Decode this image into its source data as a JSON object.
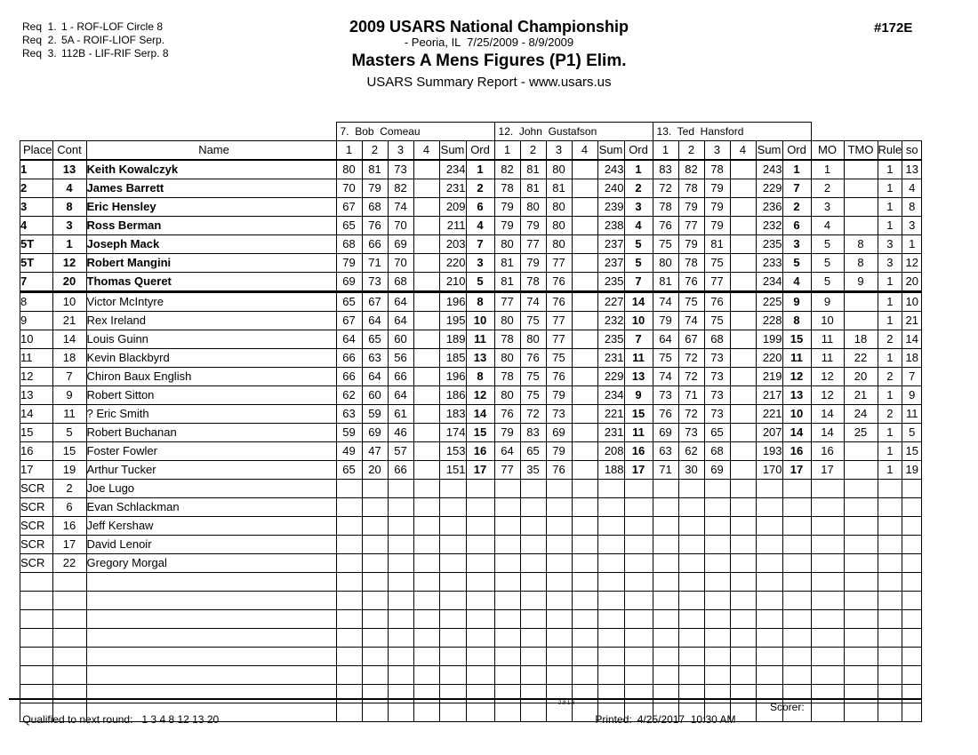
{
  "page": {
    "requirements": [
      {
        "label": "Req  1.",
        "value": "1 - ROF-LOF Circle 8"
      },
      {
        "label": "Req  2.",
        "value": "5A - ROIF-LIOF Serp."
      },
      {
        "label": "Req  3.",
        "value": "112B - LIF-RIF Serp. 8"
      }
    ],
    "title": "2009 USARS National Championship",
    "subtitle": "- Peoria, IL  7/25/2009 - 8/9/2009",
    "event_name": "Masters A Mens Figures (P1) Elim.",
    "report_line": "USARS Summary Report - www.usars.us",
    "event_number": "#172E"
  },
  "table": {
    "judges": [
      "7.  Bob  Comeau",
      "12.  John  Gustafson",
      "13.  Ted  Hansford"
    ],
    "left_columns": [
      "Place",
      "Cont",
      "Name"
    ],
    "judge_subcolumns": [
      "1",
      "2",
      "3",
      "4",
      "Sum",
      "Ord"
    ],
    "right_columns": [
      "MO",
      "TMO",
      "Rule",
      "so"
    ],
    "empty_row_count": 8,
    "rows": [
      {
        "place": "1",
        "cont": "13",
        "name": "Keith Kowalczyk",
        "bold": true,
        "cut": false,
        "j1": [
          "80",
          "81",
          "73",
          "",
          "234",
          "1"
        ],
        "j2": [
          "82",
          "81",
          "80",
          "",
          "243",
          "1"
        ],
        "j3": [
          "83",
          "82",
          "78",
          "",
          "243",
          "1"
        ],
        "mo": "1",
        "tmo": "",
        "rule": "1",
        "so": "13"
      },
      {
        "place": "2",
        "cont": "4",
        "name": "James Barrett",
        "bold": true,
        "cut": false,
        "j1": [
          "70",
          "79",
          "82",
          "",
          "231",
          "2"
        ],
        "j2": [
          "78",
          "81",
          "81",
          "",
          "240",
          "2"
        ],
        "j3": [
          "72",
          "78",
          "79",
          "",
          "229",
          "7"
        ],
        "mo": "2",
        "tmo": "",
        "rule": "1",
        "so": "4"
      },
      {
        "place": "3",
        "cont": "8",
        "name": "Eric Hensley",
        "bold": true,
        "cut": false,
        "j1": [
          "67",
          "68",
          "74",
          "",
          "209",
          "6"
        ],
        "j2": [
          "79",
          "80",
          "80",
          "",
          "239",
          "3"
        ],
        "j3": [
          "78",
          "79",
          "79",
          "",
          "236",
          "2"
        ],
        "mo": "3",
        "tmo": "",
        "rule": "1",
        "so": "8"
      },
      {
        "place": "4",
        "cont": "3",
        "name": "Ross Berman",
        "bold": true,
        "cut": false,
        "j1": [
          "65",
          "76",
          "70",
          "",
          "211",
          "4"
        ],
        "j2": [
          "79",
          "79",
          "80",
          "",
          "238",
          "4"
        ],
        "j3": [
          "76",
          "77",
          "79",
          "",
          "232",
          "6"
        ],
        "mo": "4",
        "tmo": "",
        "rule": "1",
        "so": "3"
      },
      {
        "place": "5T",
        "cont": "1",
        "name": "Joseph Mack",
        "bold": true,
        "cut": false,
        "j1": [
          "68",
          "66",
          "69",
          "",
          "203",
          "7"
        ],
        "j2": [
          "80",
          "77",
          "80",
          "",
          "237",
          "5"
        ],
        "j3": [
          "75",
          "79",
          "81",
          "",
          "235",
          "3"
        ],
        "mo": "5",
        "tmo": "8",
        "rule": "3",
        "so": "1"
      },
      {
        "place": "5T",
        "cont": "12",
        "name": "Robert Mangini",
        "bold": true,
        "cut": false,
        "j1": [
          "79",
          "71",
          "70",
          "",
          "220",
          "3"
        ],
        "j2": [
          "81",
          "79",
          "77",
          "",
          "237",
          "5"
        ],
        "j3": [
          "80",
          "78",
          "75",
          "",
          "233",
          "5"
        ],
        "mo": "5",
        "tmo": "8",
        "rule": "3",
        "so": "12"
      },
      {
        "place": "7",
        "cont": "20",
        "name": "Thomas Queret",
        "bold": true,
        "cut": true,
        "j1": [
          "69",
          "73",
          "68",
          "",
          "210",
          "5"
        ],
        "j2": [
          "81",
          "78",
          "76",
          "",
          "235",
          "7"
        ],
        "j3": [
          "81",
          "76",
          "77",
          "",
          "234",
          "4"
        ],
        "mo": "5",
        "tmo": "9",
        "rule": "1",
        "so": "20"
      },
      {
        "place": "8",
        "cont": "10",
        "name": "Victor McIntyre",
        "bold": false,
        "cut": false,
        "j1": [
          "65",
          "67",
          "64",
          "",
          "196",
          "8"
        ],
        "j2": [
          "77",
          "74",
          "76",
          "",
          "227",
          "14"
        ],
        "j3": [
          "74",
          "75",
          "76",
          "",
          "225",
          "9"
        ],
        "mo": "9",
        "tmo": "",
        "rule": "1",
        "so": "10"
      },
      {
        "place": "9",
        "cont": "21",
        "name": "Rex Ireland",
        "bold": false,
        "cut": false,
        "j1": [
          "67",
          "64",
          "64",
          "",
          "195",
          "10"
        ],
        "j2": [
          "80",
          "75",
          "77",
          "",
          "232",
          "10"
        ],
        "j3": [
          "79",
          "74",
          "75",
          "",
          "228",
          "8"
        ],
        "mo": "10",
        "tmo": "",
        "rule": "1",
        "so": "21"
      },
      {
        "place": "10",
        "cont": "14",
        "name": "Louis Guinn",
        "bold": false,
        "cut": false,
        "j1": [
          "64",
          "65",
          "60",
          "",
          "189",
          "11"
        ],
        "j2": [
          "78",
          "80",
          "77",
          "",
          "235",
          "7"
        ],
        "j3": [
          "64",
          "67",
          "68",
          "",
          "199",
          "15"
        ],
        "mo": "11",
        "tmo": "18",
        "rule": "2",
        "so": "14"
      },
      {
        "place": "11",
        "cont": "18",
        "name": "Kevin Blackbyrd",
        "bold": false,
        "cut": false,
        "j1": [
          "66",
          "63",
          "56",
          "",
          "185",
          "13"
        ],
        "j2": [
          "80",
          "76",
          "75",
          "",
          "231",
          "11"
        ],
        "j3": [
          "75",
          "72",
          "73",
          "",
          "220",
          "11"
        ],
        "mo": "11",
        "tmo": "22",
        "rule": "1",
        "so": "18"
      },
      {
        "place": "12",
        "cont": "7",
        "name": "Chiron Baux English",
        "bold": false,
        "cut": false,
        "j1": [
          "66",
          "64",
          "66",
          "",
          "196",
          "8"
        ],
        "j2": [
          "78",
          "75",
          "76",
          "",
          "229",
          "13"
        ],
        "j3": [
          "74",
          "72",
          "73",
          "",
          "219",
          "12"
        ],
        "mo": "12",
        "tmo": "20",
        "rule": "2",
        "so": "7"
      },
      {
        "place": "13",
        "cont": "9",
        "name": "Robert Sitton",
        "bold": false,
        "cut": false,
        "j1": [
          "62",
          "60",
          "64",
          "",
          "186",
          "12"
        ],
        "j2": [
          "80",
          "75",
          "79",
          "",
          "234",
          "9"
        ],
        "j3": [
          "73",
          "71",
          "73",
          "",
          "217",
          "13"
        ],
        "mo": "12",
        "tmo": "21",
        "rule": "1",
        "so": "9"
      },
      {
        "place": "14",
        "cont": "11",
        "name": "? Eric Smith",
        "bold": false,
        "cut": false,
        "j1": [
          "63",
          "59",
          "61",
          "",
          "183",
          "14"
        ],
        "j2": [
          "76",
          "72",
          "73",
          "",
          "221",
          "15"
        ],
        "j3": [
          "76",
          "72",
          "73",
          "",
          "221",
          "10"
        ],
        "mo": "14",
        "tmo": "24",
        "rule": "2",
        "so": "11"
      },
      {
        "place": "15",
        "cont": "5",
        "name": "Robert Buchanan",
        "bold": false,
        "cut": false,
        "j1": [
          "59",
          "69",
          "46",
          "",
          "174",
          "15"
        ],
        "j2": [
          "79",
          "83",
          "69",
          "",
          "231",
          "11"
        ],
        "j3": [
          "69",
          "73",
          "65",
          "",
          "207",
          "14"
        ],
        "mo": "14",
        "tmo": "25",
        "rule": "1",
        "so": "5"
      },
      {
        "place": "16",
        "cont": "15",
        "name": "Foster Fowler",
        "bold": false,
        "cut": false,
        "j1": [
          "49",
          "47",
          "57",
          "",
          "153",
          "16"
        ],
        "j2": [
          "64",
          "65",
          "79",
          "",
          "208",
          "16"
        ],
        "j3": [
          "63",
          "62",
          "68",
          "",
          "193",
          "16"
        ],
        "mo": "16",
        "tmo": "",
        "rule": "1",
        "so": "15"
      },
      {
        "place": "17",
        "cont": "19",
        "name": "Arthur Tucker",
        "bold": false,
        "cut": false,
        "j1": [
          "65",
          "20",
          "66",
          "",
          "151",
          "17"
        ],
        "j2": [
          "77",
          "35",
          "76",
          "",
          "188",
          "17"
        ],
        "j3": [
          "71",
          "30",
          "69",
          "",
          "170",
          "17"
        ],
        "mo": "17",
        "tmo": "",
        "rule": "1",
        "so": "19"
      },
      {
        "place": "SCR",
        "cont": "2",
        "name": "Joe Lugo",
        "bold": false,
        "cut": false,
        "j1": [
          "",
          "",
          "",
          "",
          "",
          ""
        ],
        "j2": [
          "",
          "",
          "",
          "",
          "",
          ""
        ],
        "j3": [
          "",
          "",
          "",
          "",
          "",
          ""
        ],
        "mo": "",
        "tmo": "",
        "rule": "",
        "so": ""
      },
      {
        "place": "SCR",
        "cont": "6",
        "name": "Evan Schlackman",
        "bold": false,
        "cut": false,
        "j1": [
          "",
          "",
          "",
          "",
          "",
          ""
        ],
        "j2": [
          "",
          "",
          "",
          "",
          "",
          ""
        ],
        "j3": [
          "",
          "",
          "",
          "",
          "",
          ""
        ],
        "mo": "",
        "tmo": "",
        "rule": "",
        "so": ""
      },
      {
        "place": "SCR",
        "cont": "16",
        "name": "Jeff Kershaw",
        "bold": false,
        "cut": false,
        "j1": [
          "",
          "",
          "",
          "",
          "",
          ""
        ],
        "j2": [
          "",
          "",
          "",
          "",
          "",
          ""
        ],
        "j3": [
          "",
          "",
          "",
          "",
          "",
          ""
        ],
        "mo": "",
        "tmo": "",
        "rule": "",
        "so": ""
      },
      {
        "place": "SCR",
        "cont": "17",
        "name": "David Lenoir",
        "bold": false,
        "cut": false,
        "j1": [
          "",
          "",
          "",
          "",
          "",
          ""
        ],
        "j2": [
          "",
          "",
          "",
          "",
          "",
          ""
        ],
        "j3": [
          "",
          "",
          "",
          "",
          "",
          ""
        ],
        "mo": "",
        "tmo": "",
        "rule": "",
        "so": ""
      },
      {
        "place": "SCR",
        "cont": "22",
        "name": "Gregory Morgal",
        "bold": false,
        "cut": false,
        "j1": [
          "",
          "",
          "",
          "",
          "",
          ""
        ],
        "j2": [
          "",
          "",
          "",
          "",
          "",
          ""
        ],
        "j3": [
          "",
          "",
          "",
          "",
          "",
          ""
        ],
        "mo": "",
        "tmo": "",
        "rule": "",
        "so": ""
      }
    ]
  },
  "footer": {
    "qualified_label": "Qualified to next round:",
    "qualified_values": "1 3 4 8 12 13 20",
    "version": "2.8.1.8",
    "printed_label": "Printed:",
    "printed_value": "4/25/2017  10:30 AM",
    "scorer_label": "Scorer:"
  }
}
